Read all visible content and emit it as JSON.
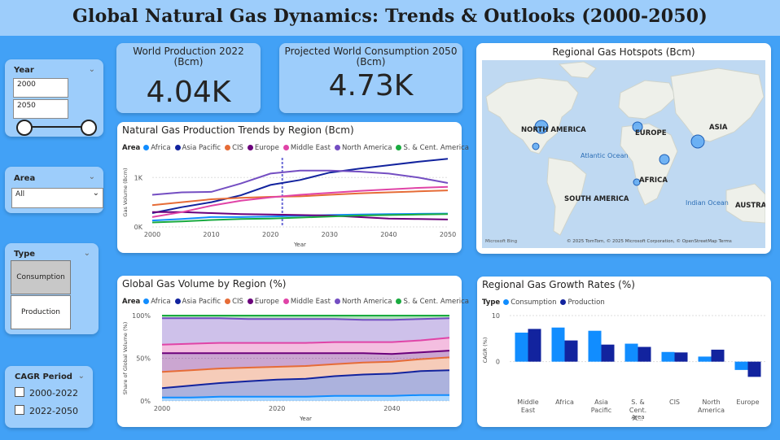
{
  "header": {
    "title": "Global Natural Gas Dynamics: Trends & Outlooks (2000-2050)"
  },
  "slicers": {
    "year": {
      "label": "Year",
      "from": "2000",
      "to": "2050"
    },
    "area": {
      "label": "Area",
      "selected": "All"
    },
    "type": {
      "label": "Type",
      "options": [
        "Consumption",
        "Production"
      ]
    },
    "cagr": {
      "label": "CAGR Period",
      "options": [
        "2000-2022",
        "2022-2050"
      ]
    }
  },
  "kpis": {
    "production": {
      "label": "World Production 2022 (Bcm)",
      "value": "4.04K"
    },
    "consumption": {
      "label": "Projected World Consumption 2050 (Bcm)",
      "value": "4.73K"
    }
  },
  "map": {
    "title": "Regional Gas Hotspots (Bcm)",
    "labels": [
      "NORTH AMERICA",
      "EUROPE",
      "ASIA",
      "AFRICA",
      "SOUTH AMERICA",
      "Atlantic Ocean",
      "Indian Ocean",
      "AUSTRAL"
    ],
    "attribution": "© 2025 TomTom, © 2025 Microsoft Corporation, © OpenStreetMap  Terms",
    "bing": "Microsoft Bing"
  },
  "legend_regions": {
    "label": "Area",
    "items": [
      {
        "name": "Africa",
        "color": "#118dff"
      },
      {
        "name": "Asia Pacific",
        "color": "#12239e"
      },
      {
        "name": "CIS",
        "color": "#e66c37"
      },
      {
        "name": "Europe",
        "color": "#6b007b"
      },
      {
        "name": "Middle East",
        "color": "#e044a7"
      },
      {
        "name": "North America",
        "color": "#744ec2"
      },
      {
        "name": "S. & Cent. America",
        "color": "#1aab40"
      }
    ]
  },
  "legend_type": {
    "label": "Type",
    "items": [
      {
        "name": "Consumption",
        "color": "#118dff"
      },
      {
        "name": "Production",
        "color": "#12239e"
      }
    ]
  },
  "chart_data": [
    {
      "type": "line",
      "title": "Natural Gas Production Trends by Region (Bcm)",
      "xlabel": "Year",
      "ylabel": "Gas Volume (Bcm)",
      "x": [
        2000,
        2005,
        2010,
        2015,
        2020,
        2025,
        2030,
        2035,
        2040,
        2045,
        2050
      ],
      "xticks": [
        "2000",
        "2010",
        "2020",
        "2030",
        "2040",
        "2050"
      ],
      "yticks": [
        "0K",
        "1K"
      ],
      "ylim": [
        0,
        1400
      ],
      "marker_year": 2022,
      "series": [
        {
          "name": "Africa",
          "values": [
            130,
            160,
            200,
            200,
            210,
            225,
            240,
            250,
            260,
            265,
            270
          ]
        },
        {
          "name": "Asia Pacific",
          "values": [
            280,
            400,
            500,
            640,
            850,
            950,
            1100,
            1180,
            1250,
            1320,
            1380
          ]
        },
        {
          "name": "CIS",
          "values": [
            440,
            500,
            560,
            590,
            610,
            620,
            650,
            680,
            700,
            720,
            740
          ]
        },
        {
          "name": "Europe",
          "values": [
            300,
            300,
            280,
            260,
            250,
            240,
            230,
            200,
            170,
            160,
            150
          ]
        },
        {
          "name": "Middle East",
          "values": [
            200,
            300,
            430,
            530,
            600,
            650,
            690,
            730,
            760,
            790,
            810
          ]
        },
        {
          "name": "North America",
          "values": [
            650,
            700,
            710,
            880,
            1080,
            1140,
            1140,
            1120,
            1080,
            1000,
            890
          ]
        },
        {
          "name": "S. & Cent. America",
          "values": [
            90,
            110,
            140,
            160,
            170,
            190,
            210,
            230,
            240,
            250,
            260
          ]
        }
      ]
    },
    {
      "type": "area",
      "title": "Global Gas Volume by Region (%)",
      "xlabel": "Year",
      "ylabel": "Share of Global Volume (%)",
      "x": [
        2000,
        2005,
        2010,
        2015,
        2020,
        2025,
        2030,
        2035,
        2040,
        2045,
        2050
      ],
      "xticks": [
        "2000",
        "2020",
        "2040"
      ],
      "yticks": [
        "0%",
        "50%",
        "100%"
      ],
      "ylim": [
        0,
        100
      ],
      "stacked": true,
      "series": [
        {
          "name": "Africa",
          "values": [
            4,
            4,
            5,
            5,
            5,
            5,
            6,
            6,
            6,
            7,
            7
          ]
        },
        {
          "name": "Asia Pacific",
          "values": [
            11,
            14,
            16,
            18,
            20,
            21,
            23,
            25,
            26,
            28,
            29
          ]
        },
        {
          "name": "CIS",
          "values": [
            19,
            18,
            17,
            16,
            15,
            15,
            14,
            14,
            14,
            14,
            15
          ]
        },
        {
          "name": "Europe",
          "values": [
            22,
            20,
            18,
            17,
            16,
            15,
            13,
            11,
            9,
            8,
            8
          ]
        },
        {
          "name": "Middle East",
          "values": [
            10,
            11,
            12,
            12,
            12,
            12,
            13,
            13,
            14,
            14,
            15
          ]
        },
        {
          "name": "North America",
          "values": [
            31,
            30,
            29,
            28,
            28,
            28,
            27,
            26,
            26,
            25,
            23
          ]
        },
        {
          "name": "S. & Cent. America",
          "values": [
            3,
            3,
            3,
            4,
            4,
            4,
            4,
            5,
            5,
            4,
            3
          ]
        }
      ]
    },
    {
      "type": "bar",
      "title": "Regional Gas Growth Rates (%)",
      "xlabel": "Area",
      "ylabel": "CAGR (%)",
      "categories": [
        "Middle East",
        "Africa",
        "Asia Pacific",
        "S. & Cent. A...",
        "CIS",
        "North America",
        "Europe"
      ],
      "yticks": [
        "0",
        "10"
      ],
      "ylim": [
        -5,
        10
      ],
      "series": [
        {
          "name": "Consumption",
          "values": [
            6.3,
            7.4,
            6.7,
            3.9,
            2.1,
            1.1,
            -1.8
          ]
        },
        {
          "name": "Production",
          "values": [
            7.1,
            4.6,
            3.7,
            3.2,
            2.0,
            2.6,
            -3.3
          ]
        }
      ]
    }
  ]
}
